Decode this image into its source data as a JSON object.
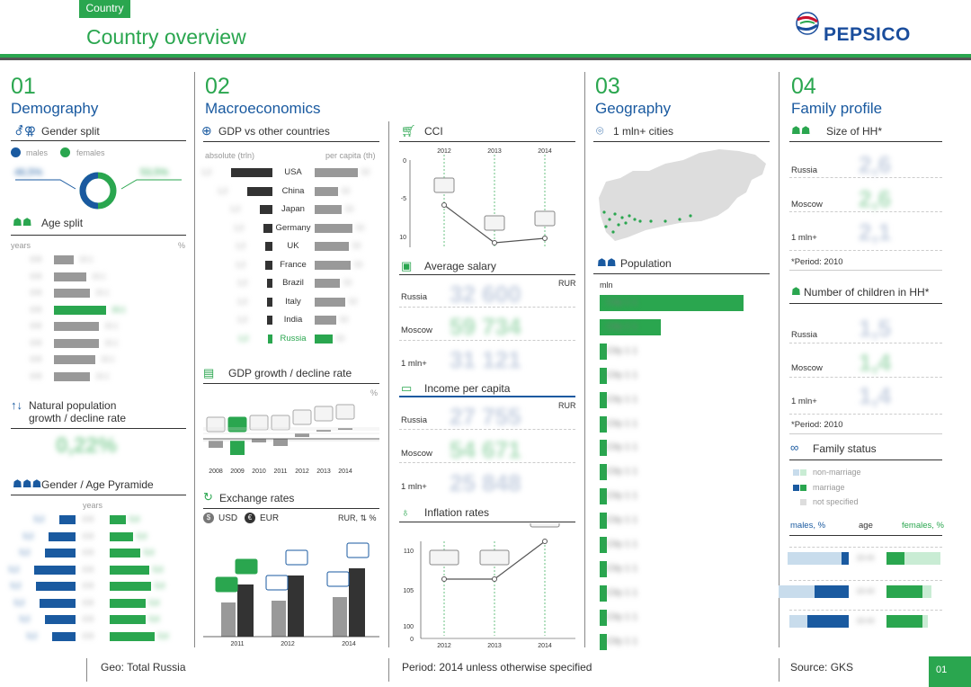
{
  "header": {
    "tag": "Country",
    "title": "Country overview",
    "logo": "PEPSICO"
  },
  "sections": {
    "s1": {
      "num": "01",
      "name": "Demography"
    },
    "s2": {
      "num": "02",
      "name": "Macroeconomics"
    },
    "s3": {
      "num": "03",
      "name": "Geography"
    },
    "s4": {
      "num": "04",
      "name": "Family profile"
    }
  },
  "demography": {
    "gender_split": "Gender split",
    "males": "males",
    "females": "females",
    "age_split": "Age split",
    "years": "years",
    "percent": "%",
    "natural_pop": "Natural population",
    "natural_pop2": "growth / decline rate",
    "pyramid": "Gender / Age Pyramide",
    "pyramid_years": "years"
  },
  "macro": {
    "gdp_vs": "GDP vs other countries",
    "absolute": "absolute (trln)",
    "per_capita": "per capita (th)",
    "countries": [
      "USA",
      "China",
      "Japan",
      "Germany",
      "UK",
      "France",
      "Brazil",
      "Italy",
      "India",
      "Russia"
    ],
    "gdp_growth": "GDP growth / decline rate",
    "gdp_pct": "%",
    "gdp_years": [
      "2008",
      "2009",
      "2010",
      "2011",
      "2012",
      "2013",
      "2014"
    ],
    "exchange": "Exchange rates",
    "usd": "USD",
    "eur": "EUR",
    "rur": "RUR, ⇅ %",
    "ex_years": [
      "2011",
      "2012",
      "2014"
    ],
    "cci": "CCI",
    "cci_years": [
      "2012",
      "2013",
      "2014"
    ],
    "cci_ticks": [
      "0",
      "-5",
      "-10"
    ],
    "avg_salary": "Average salary",
    "income": "Income per capita",
    "rur_unit": "RUR",
    "rows": [
      "Russia",
      "Moscow",
      "1 mln+"
    ],
    "inflation": "Inflation rates",
    "inf_ticks": [
      "110",
      "105",
      "100",
      "0"
    ],
    "inf_years": [
      "2012",
      "2013",
      "2014"
    ]
  },
  "geo": {
    "cities": "1 mln+ cities",
    "population": "Population",
    "mln": "mln"
  },
  "family": {
    "size": "Size of HH*",
    "rows": [
      "Russia",
      "Moscow",
      "1 mln+"
    ],
    "period": "*Period: 2010",
    "children": "Number of children in HH*",
    "status": "Family status",
    "non_marriage": "non-marriage",
    "marriage": "marriage",
    "not_specified": "not specified",
    "males_pct": "males, %",
    "age": "age",
    "females_pct": "females, %"
  },
  "footer": {
    "geo": "Geo: Total Russia",
    "period": "Period: 2014 unless otherwise specified",
    "source": "Source: GKS",
    "page": "01"
  },
  "colors": {
    "green": "#2aa64f",
    "blue": "#1a5aa0",
    "dark": "#333333",
    "grey": "#999999"
  }
}
